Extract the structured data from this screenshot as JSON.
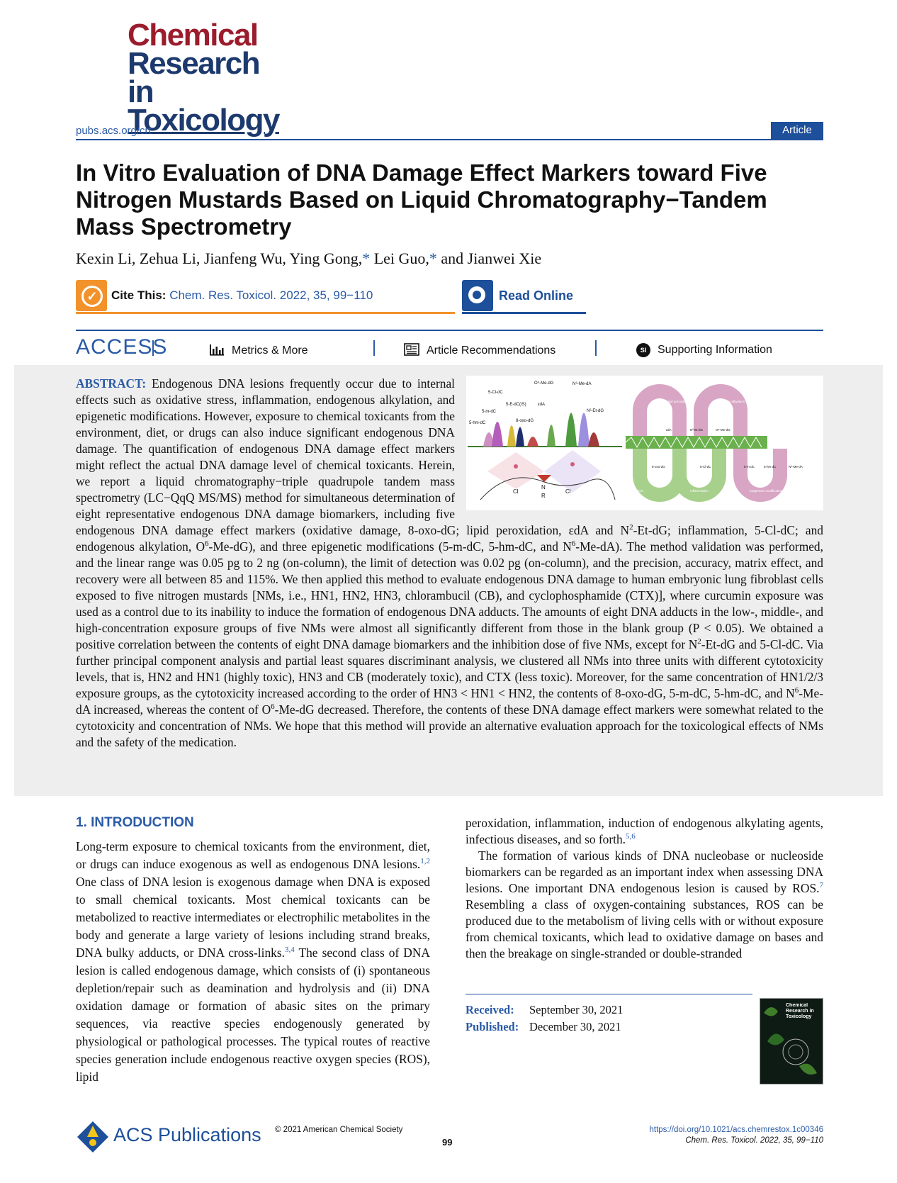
{
  "journal": {
    "logo_line1": "Chemical",
    "logo_line2": "Research in",
    "logo_line3": "Toxicology",
    "site_url": "pubs.acs.org/crt",
    "article_type": "Article"
  },
  "article": {
    "title": "In Vitro Evaluation of DNA Damage Effect Markers toward Five Nitrogen Mustards Based on Liquid Chromatography−Tandem Mass Spectrometry",
    "authors_part1": "Kexin Li, Zehua Li, Jianfeng Wu, Ying Gong,",
    "authors_star": "*",
    "authors_part2": " Lei Guo,",
    "authors_part3": " and Jianwei Xie"
  },
  "cite": {
    "label": "Cite This:",
    "reference": "Chem. Res. Toxicol. 2022, 35, 99−110",
    "read_online": "Read Online"
  },
  "access": {
    "label": "ACCESS",
    "metrics": "Metrics & More",
    "recommendations": "Article Recommendations",
    "si_badge": "SI",
    "supporting": "Supporting Information"
  },
  "abstract": {
    "label": "ABSTRACT:",
    "text_a": " Endogenous DNA lesions frequently occur due to internal effects such as oxidative stress, inflammation, endogenous alkylation, and epigenetic modifications. However, exposure to chemical toxicants from the environment, diet, or drugs can also induce significant endogenous DNA damage. The quantification of endogenous DNA damage effect markers might reflect the actual DNA damage level of chemical toxicants. Herein, we report a liquid chromatography−triple quadrupole tandem mass spectrometry (LC−QqQ MS/MS) method for simultaneous determination of eight representative endogenous DNA damage biomarkers, including five endogenous DNA damage effect markers (oxidative damage, 8-oxo-dG; lipid peroxidation, εdA and N",
    "sup_2a": "2",
    "text_b": "-Et-dG; inflammation, 5-Cl-dC; and endogenous alkylation, O",
    "sup_6a": "6",
    "text_c": "-Me-dG), and three epigenetic modifications (5-m-dC, 5-hm-dC, and N",
    "sup_6b": "6",
    "text_d": "-Me-dA). The method validation was performed, and the linear range was 0.05 pg to 2 ng (on-column), the limit of detection was 0.02 pg (on-column), and the precision, accuracy, matrix effect, and recovery were all between 85 and 115%. We then applied this method to evaluate endogenous DNA damage to human embryonic lung fibroblast cells exposed to five nitrogen mustards [NMs, i.e., HN1, HN2, HN3, chlorambucil (CB), and cyclophosphamide (CTX)], where curcumin exposure was used as a control due to its inability to induce the formation of endogenous DNA adducts. The amounts of eight DNA adducts in the low-, middle-, and high-concentration exposure groups of five NMs were almost all significantly different from those in the blank group (P < 0.05). We obtained a positive correlation between the contents of eight DNA damage biomarkers and the inhibition dose of five NMs, except for N",
    "sup_2b": "2",
    "text_e": "-Et-dG and 5-Cl-dC. Via further principal component analysis and partial least squares discriminant analysis, we clustered all NMs into three units with different cytotoxicity levels, that is, HN2 and HN1 (highly toxic), HN3 and CB (moderately toxic), and CTX (less toxic). Moreover, for the same concentration of HN1/2/3 exposure groups, as the cytotoxicity increased according to the order of HN3 < HN1 < HN2, the contents of 8-oxo-dG, 5-m-dC, 5-hm-dC, and N",
    "sup_6c": "6",
    "text_f": "-Me-dA increased, whereas the content of O",
    "sup_6d": "6",
    "text_g": "-Me-dG decreased. Therefore, the contents of these DNA damage effect markers were somewhat related to the cytotoxicity and concentration of NMs. We hope that this method will provide an alternative evaluation approach for the toxicological effects of NMs and the safety of the medication."
  },
  "toc_graphic": {
    "peak_labels": [
      "O⁶-Me-dG",
      "N⁶-Me-dA",
      "5-Cl-dC",
      "5-E-dC(IS)",
      "εdA",
      "N²-Et-dG",
      "5-m-dC",
      "8-oxo-dG",
      "5-hm-dC"
    ],
    "panel_labels": [
      "Lipid peroxidation",
      "Endogenous alkylation",
      "ROS",
      "Inflammation",
      "Epigenetic modification"
    ],
    "structure_labels": [
      "εdA",
      "N²-Et-dG",
      "O⁶-Me-dG",
      "8-oxo-dG",
      "5-Cl-dC",
      "5-m-dC",
      "5-hm-dC",
      "N⁶-Me-dA"
    ],
    "mustard_atoms": [
      "Cl",
      "N",
      "Cl",
      "R"
    ]
  },
  "introduction": {
    "heading": "1. INTRODUCTION",
    "col1_a": "Long-term exposure to chemical toxicants from the environment, diet, or drugs can induce exogenous as well as endogenous DNA lesions.",
    "ref_1": "1,2",
    "col1_b": " One class of DNA lesion is exogenous damage when DNA is exposed to small chemical toxicants. Most chemical toxicants can be metabolized to reactive intermediates or electrophilic metabolites in the body and generate a large variety of lesions including strand breaks, DNA bulky adducts, or DNA cross-links.",
    "ref_2": "3,4",
    "col1_c": " The second class of DNA lesion is called endogenous damage, which consists of (i) spontaneous depletion/repair such as deamination and hydrolysis and (ii) DNA oxidation damage or formation of abasic sites on the primary sequences, via reactive species endogenously generated by physiological or pathological processes. The typical routes of reactive species generation include endogenous reactive oxygen species (ROS), lipid",
    "col2_a": "peroxidation, inflammation, induction of endogenous alkylating agents, infectious diseases, and so forth.",
    "ref_3": "5,6",
    "col2_b": "The formation of various kinds of DNA nucleobase or nucleoside biomarkers can be regarded as an important index when assessing DNA lesions. One important DNA endogenous lesion is caused by ROS.",
    "ref_4": "7",
    "col2_c": " Resembling a class of oxygen-containing substances, ROS can be produced due to the metabolism of living cells with or without exposure from chemical toxicants, which lead to oxidative damage on bases and then the breakage on single-stranded or double-stranded"
  },
  "dates": {
    "received_label": "Received:",
    "received": "September 30, 2021",
    "published_label": "Published:",
    "published": "December 30, 2021"
  },
  "cover": {
    "title": "Chemical Research in Toxicology"
  },
  "footer": {
    "publisher": "ACS Publications",
    "copyright": "© 2021 American Chemical Society",
    "page": "99",
    "doi": "https://doi.org/10.1021/acs.chemrestox.1c00346",
    "reference": "Chem. Res. Toxicol. 2022, 35, 99−110"
  },
  "colors": {
    "acs_blue": "#1d4f9a",
    "link_blue": "#2a5aa6",
    "journal_red": "#9b1c2c",
    "cite_orange": "#f2922b"
  }
}
